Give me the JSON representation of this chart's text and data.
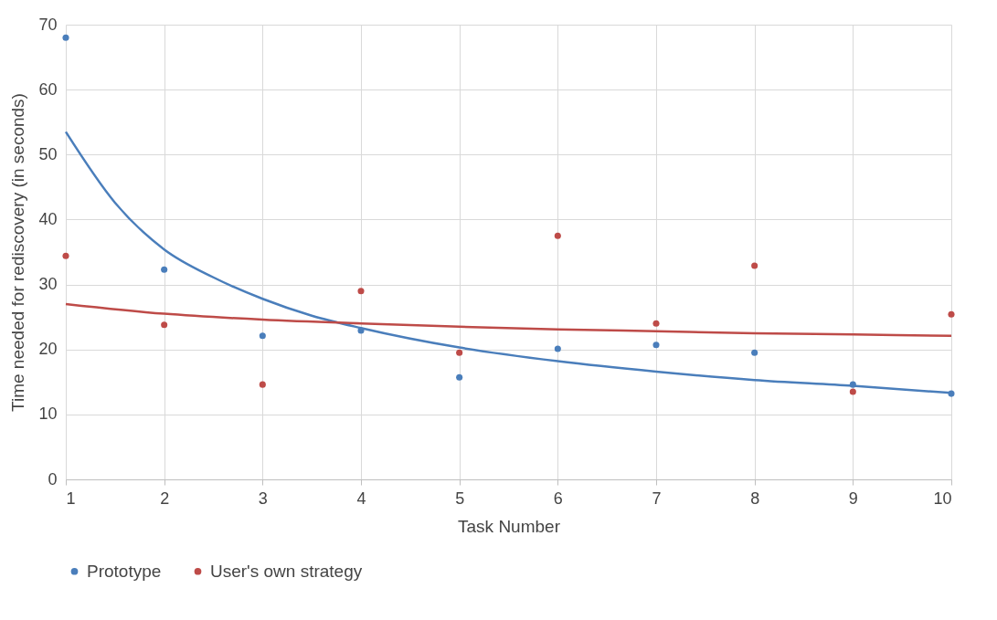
{
  "chart_data": {
    "type": "scatter",
    "xlabel": "Task Number",
    "ylabel": "Time needed for rediscovery (in seconds)",
    "xlim": [
      1,
      10
    ],
    "xticks": [
      1,
      2,
      3,
      4,
      5,
      6,
      7,
      8,
      9,
      10
    ],
    "ylim": [
      0,
      70
    ],
    "yticks": [
      0,
      10,
      20,
      30,
      40,
      50,
      60,
      70
    ],
    "grid": true,
    "legend": "bottom",
    "x": [
      1,
      2,
      3,
      4,
      5,
      6,
      7,
      8,
      9,
      10
    ],
    "series": [
      {
        "name": "Prototype",
        "color": "#4a7ebb",
        "marker": "circle",
        "values": [
          68,
          32.3,
          22.1,
          22.9,
          15.7,
          20.1,
          20.7,
          19.5,
          14.6,
          13.2
        ]
      },
      {
        "name": "User's own strategy",
        "color": "#be4b48",
        "marker": "circle",
        "values": [
          34.4,
          23.8,
          14.6,
          29,
          19.5,
          37.5,
          24,
          32.9,
          13.5,
          25.4
        ]
      },
      {
        "type": "line",
        "color": "#4a7ebb",
        "marker": "none",
        "x": [
          1,
          1.5,
          2,
          2.5,
          3,
          3.5,
          4,
          5,
          6,
          7,
          8,
          9,
          10
        ],
        "values": [
          53.5,
          42.6,
          35.4,
          31.1,
          27.8,
          25.2,
          23.3,
          20.3,
          18.2,
          16.6,
          15.3,
          14.4,
          13.3
        ]
      },
      {
        "type": "line",
        "color": "#be4b48",
        "marker": "none",
        "x": [
          1,
          2,
          3,
          4,
          5,
          6,
          7,
          8,
          9,
          10
        ],
        "values": [
          27,
          25.5,
          24.6,
          24,
          23.5,
          23.1,
          22.8,
          22.5,
          22.3,
          22.1
        ]
      }
    ]
  }
}
